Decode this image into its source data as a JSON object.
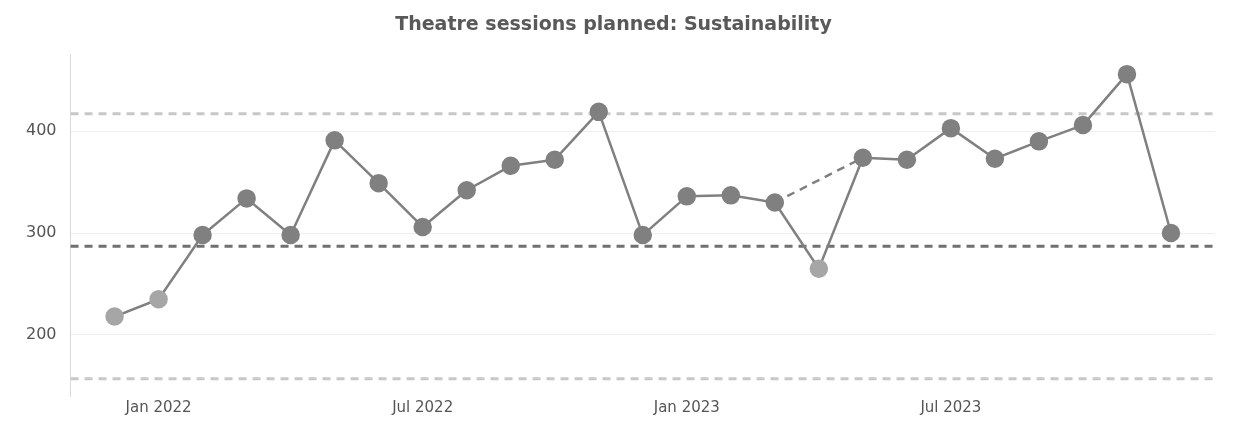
{
  "chart_data": {
    "type": "line",
    "title": "Theatre sessions planned: Sustainability",
    "x": [
      "2021-12",
      "2022-01",
      "2022-02",
      "2022-03",
      "2022-04",
      "2022-05",
      "2022-06",
      "2022-07",
      "2022-08",
      "2022-09",
      "2022-10",
      "2022-11",
      "2022-12",
      "2023-01",
      "2023-02",
      "2023-03",
      "2023-04",
      "2023-05",
      "2023-06",
      "2023-07",
      "2023-08",
      "2023-09",
      "2023-10",
      "2023-11",
      "2023-12"
    ],
    "series": [
      {
        "color": "#808080",
        "colors": [
          "#a6a6a6",
          "#a6a6a6",
          "#808080",
          "#808080",
          "#808080",
          "#808080",
          "#808080",
          "#808080",
          "#808080",
          "#808080",
          "#808080",
          "#808080",
          "#808080",
          "#808080",
          "#808080",
          "#808080",
          "#a6a6a6",
          "#808080",
          "#808080",
          "#808080",
          "#808080",
          "#808080",
          "#808080",
          "#808080",
          "#808080"
        ],
        "values": [
          218,
          235,
          298,
          334,
          298,
          391,
          349,
          306,
          342,
          366,
          372,
          419,
          298,
          336,
          337,
          330,
          265,
          374,
          372,
          403,
          373,
          390,
          406,
          456,
          300
        ],
        "marker": "circle",
        "line_style": "solid"
      },
      {
        "color": "#808080",
        "values": [
          null,
          null,
          null,
          null,
          null,
          null,
          null,
          null,
          null,
          null,
          null,
          null,
          null,
          null,
          null,
          330,
          null,
          374,
          null,
          null,
          null,
          null,
          null,
          null,
          null
        ],
        "marker": "none",
        "line_style": "dashed"
      }
    ],
    "ylim": [
      140,
      475
    ],
    "yticks": [
      200,
      300,
      400
    ],
    "xlim": [
      "2021-11",
      "2024-01"
    ],
    "xticks": [
      {
        "value": "2022-01",
        "label": "Jan 2022"
      },
      {
        "value": "2022-07",
        "label": "Jul 2022"
      },
      {
        "value": "2023-01",
        "label": "Jan 2023"
      },
      {
        "value": "2023-07",
        "label": "Jul 2023"
      }
    ],
    "grid": "y",
    "legend": false,
    "ref_lines": [
      {
        "axis": "y",
        "value": 417,
        "color": "#c8c8c8",
        "line_style": "dashed"
      },
      {
        "axis": "y",
        "value": 287,
        "color": "#707070",
        "line_style": "dashed"
      },
      {
        "axis": "y",
        "value": 157,
        "color": "#c8c8c8",
        "line_style": "dashed"
      }
    ]
  }
}
